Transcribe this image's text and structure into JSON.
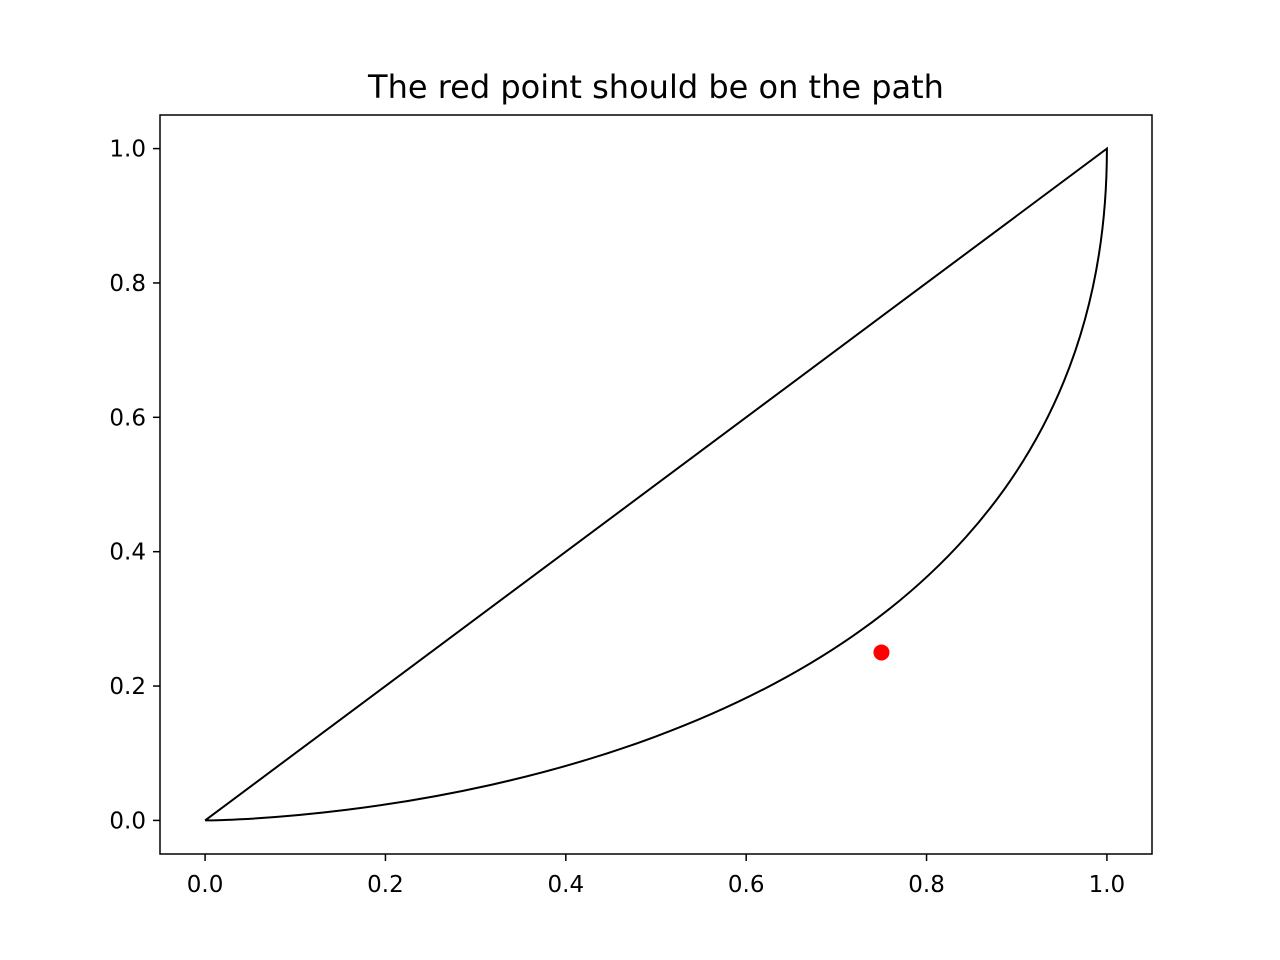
{
  "chart_data": {
    "type": "line",
    "title": "The red point should be on the path",
    "xlabel": "",
    "ylabel": "",
    "xlim": [
      -0.05,
      1.05
    ],
    "ylim": [
      -0.05,
      1.05
    ],
    "x_ticks": [
      0.0,
      0.2,
      0.4,
      0.6,
      0.8,
      1.0
    ],
    "x_tick_labels": [
      "0.0",
      "0.2",
      "0.4",
      "0.6",
      "0.8",
      "1.0"
    ],
    "y_ticks": [
      0.0,
      0.2,
      0.4,
      0.6,
      0.8,
      1.0
    ],
    "y_tick_labels": [
      "0.0",
      "0.2",
      "0.4",
      "0.6",
      "0.8",
      "1.0"
    ],
    "grid": false,
    "path": {
      "segments": [
        {
          "type": "line",
          "from": [
            0,
            0
          ],
          "to": [
            1,
            1
          ]
        },
        {
          "type": "line",
          "from": [
            1,
            1
          ],
          "to": [
            1,
            1
          ]
        },
        {
          "type": "cubic_bezier",
          "points": [
            [
              1,
              1
            ],
            [
              1,
              0
            ],
            [
              0,
              0
            ],
            [
              0,
              0
            ]
          ]
        }
      ],
      "color": "#000000"
    },
    "series": [
      {
        "x": [
          0.75
        ],
        "y": [
          0.25
        ],
        "color": "#ff0000"
      }
    ]
  }
}
